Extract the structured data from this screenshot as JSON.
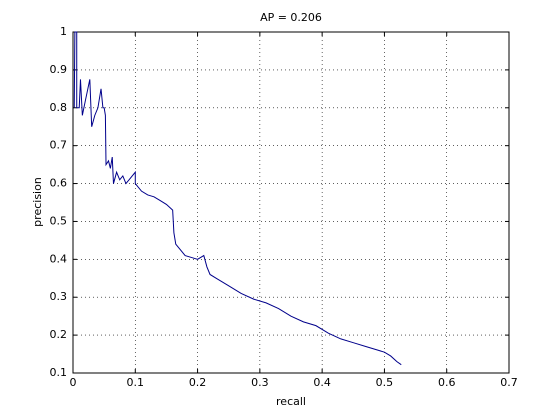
{
  "chart_data": {
    "type": "line",
    "title": "AP = 0.206",
    "x_label": "recall",
    "y_label": "precision",
    "x": [
      0.002,
      0.003,
      0.006,
      0.006,
      0.01,
      0.012,
      0.015,
      0.02,
      0.027,
      0.03,
      0.035,
      0.04,
      0.045,
      0.048,
      0.05,
      0.052,
      0.053,
      0.057,
      0.06,
      0.063,
      0.065,
      0.07,
      0.075,
      0.08,
      0.085,
      0.09,
      0.1,
      0.1,
      0.11,
      0.12,
      0.13,
      0.14,
      0.15,
      0.16,
      0.162,
      0.165,
      0.17,
      0.18,
      0.19,
      0.2,
      0.21,
      0.215,
      0.22,
      0.23,
      0.25,
      0.27,
      0.29,
      0.31,
      0.33,
      0.35,
      0.37,
      0.39,
      0.41,
      0.43,
      0.45,
      0.47,
      0.49,
      0.5,
      0.51,
      0.52,
      0.527
    ],
    "series": [
      {
        "color": "#00008b",
        "values": [
          0.8,
          1.0,
          1.0,
          0.8,
          0.8,
          0.875,
          0.78,
          0.82,
          0.875,
          0.75,
          0.78,
          0.8,
          0.85,
          0.8,
          0.8,
          0.78,
          0.65,
          0.66,
          0.64,
          0.67,
          0.6,
          0.63,
          0.61,
          0.62,
          0.6,
          0.61,
          0.63,
          0.6,
          0.58,
          0.57,
          0.565,
          0.555,
          0.545,
          0.53,
          0.47,
          0.44,
          0.43,
          0.41,
          0.405,
          0.4,
          0.41,
          0.38,
          0.36,
          0.35,
          0.33,
          0.31,
          0.295,
          0.285,
          0.27,
          0.25,
          0.235,
          0.225,
          0.205,
          0.19,
          0.18,
          0.17,
          0.16,
          0.155,
          0.145,
          0.13,
          0.122
        ]
      }
    ],
    "xlim": [
      0,
      0.7
    ],
    "xticks": [
      0,
      0.1,
      0.2,
      0.3,
      0.4,
      0.5,
      0.6,
      0.7
    ],
    "ylim": [
      0.1,
      1
    ],
    "yticks": [
      0.1,
      0.2,
      0.3,
      0.4,
      0.5,
      0.6,
      0.7,
      0.8,
      0.9,
      1
    ],
    "grid": true
  }
}
